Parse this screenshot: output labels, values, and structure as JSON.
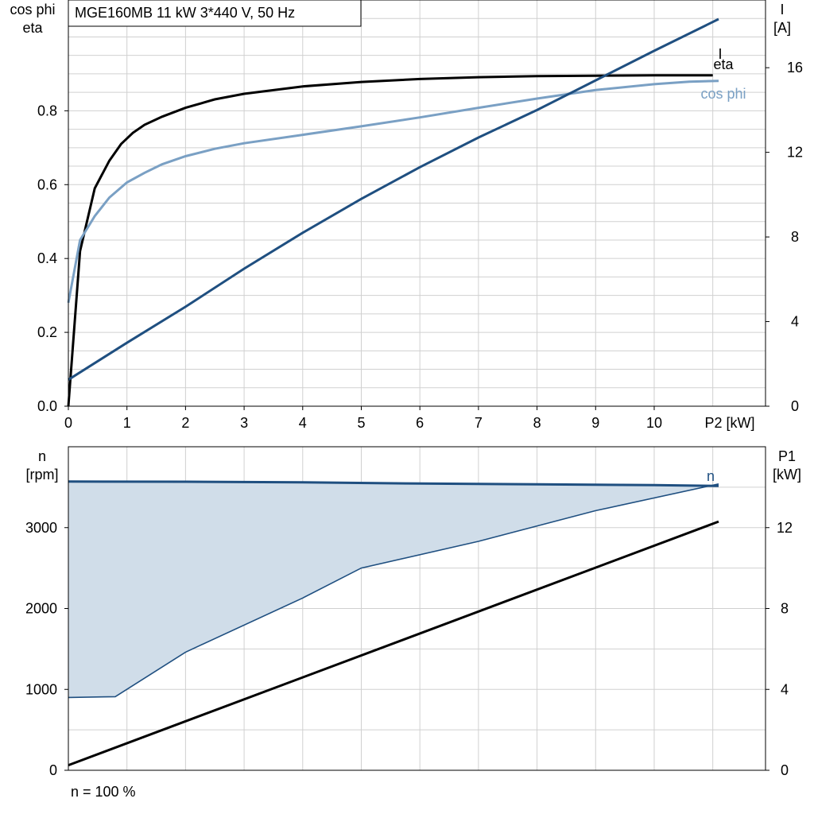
{
  "chart_data": [
    {
      "type": "line",
      "title": "MGE160MB   11 kW   3*440 V, 50 Hz",
      "xlabel": "P2 [kW]",
      "ylabel_left": [
        "cos phi",
        "eta"
      ],
      "ylabel_right": [
        "I",
        "[A]"
      ],
      "xlim": [
        0,
        11.9
      ],
      "ylim_left": [
        0,
        1.1
      ],
      "ylim_right": [
        0,
        19.2
      ],
      "x_ticks": [
        "0",
        "1",
        "2",
        "3",
        "4",
        "5",
        "6",
        "7",
        "8",
        "9",
        "10"
      ],
      "y_left_ticks": [
        "0.0",
        "0.2",
        "0.4",
        "0.6",
        "0.8"
      ],
      "y_right_ticks": [
        "0",
        "4",
        "8",
        "12",
        "16"
      ],
      "grid": true,
      "series": [
        {
          "name": "eta",
          "axis": "left",
          "color": "#000000",
          "x": [
            0,
            0.2,
            0.45,
            0.7,
            0.9,
            1.1,
            1.3,
            1.6,
            2.0,
            2.5,
            3.0,
            4.0,
            5.0,
            6.0,
            7.0,
            8.0,
            9.0,
            10.0,
            11.0
          ],
          "y": [
            0.0,
            0.42,
            0.59,
            0.665,
            0.71,
            0.74,
            0.762,
            0.784,
            0.808,
            0.831,
            0.846,
            0.866,
            0.878,
            0.886,
            0.891,
            0.894,
            0.895,
            0.896,
            0.896
          ]
        },
        {
          "name": "cos phi",
          "axis": "left",
          "color": "#7aa0c4",
          "x": [
            0,
            0.2,
            0.45,
            0.7,
            1.0,
            1.3,
            1.6,
            2.0,
            2.5,
            3.0,
            4.0,
            5.0,
            6.0,
            7.0,
            8.0,
            9.0,
            10.0,
            10.6,
            11.1
          ],
          "y": [
            0.28,
            0.45,
            0.515,
            0.565,
            0.606,
            0.632,
            0.655,
            0.677,
            0.697,
            0.712,
            0.735,
            0.758,
            0.782,
            0.808,
            0.833,
            0.856,
            0.872,
            0.879,
            0.881
          ]
        },
        {
          "name": "I",
          "axis": "right",
          "color": "#1f4f80",
          "x": [
            0,
            1,
            2,
            3,
            4,
            5,
            6,
            7,
            8,
            9,
            10,
            11.1
          ],
          "y": [
            1.25,
            3.0,
            4.7,
            6.5,
            8.2,
            9.8,
            11.3,
            12.7,
            14.0,
            15.4,
            16.8,
            18.3
          ]
        }
      ]
    },
    {
      "type": "area",
      "xlabel": "",
      "ylabel_left": [
        "n",
        "[rpm]"
      ],
      "ylabel_right": [
        "P1",
        "[kW]"
      ],
      "xlim": [
        0,
        11.9
      ],
      "ylim_left": [
        0,
        4000
      ],
      "ylim_right": [
        0,
        16
      ],
      "y_left_ticks": [
        "0",
        "1000",
        "2000",
        "3000"
      ],
      "y_right_ticks": [
        "0",
        "4",
        "8",
        "12"
      ],
      "grid": true,
      "note": "n = 100 %",
      "series": [
        {
          "name": "n",
          "axis": "left",
          "color": "#1f4f80",
          "x": [
            0,
            2,
            4,
            6,
            8,
            10,
            11.1
          ],
          "y": [
            3570,
            3568,
            3560,
            3545,
            3535,
            3525,
            3515
          ]
        },
        {
          "axis": "left",
          "color": "#1f4f80",
          "x": [
            0,
            0.8,
            2.0,
            4.0,
            5.0,
            7.0,
            9.0,
            11.1
          ],
          "y": [
            900,
            910,
            1460,
            2130,
            2500,
            2830,
            3210,
            3540
          ]
        },
        {
          "name": "P1",
          "axis": "right",
          "color": "#000000",
          "x": [
            0,
            11.1
          ],
          "y": [
            0.25,
            12.3
          ]
        }
      ]
    }
  ]
}
